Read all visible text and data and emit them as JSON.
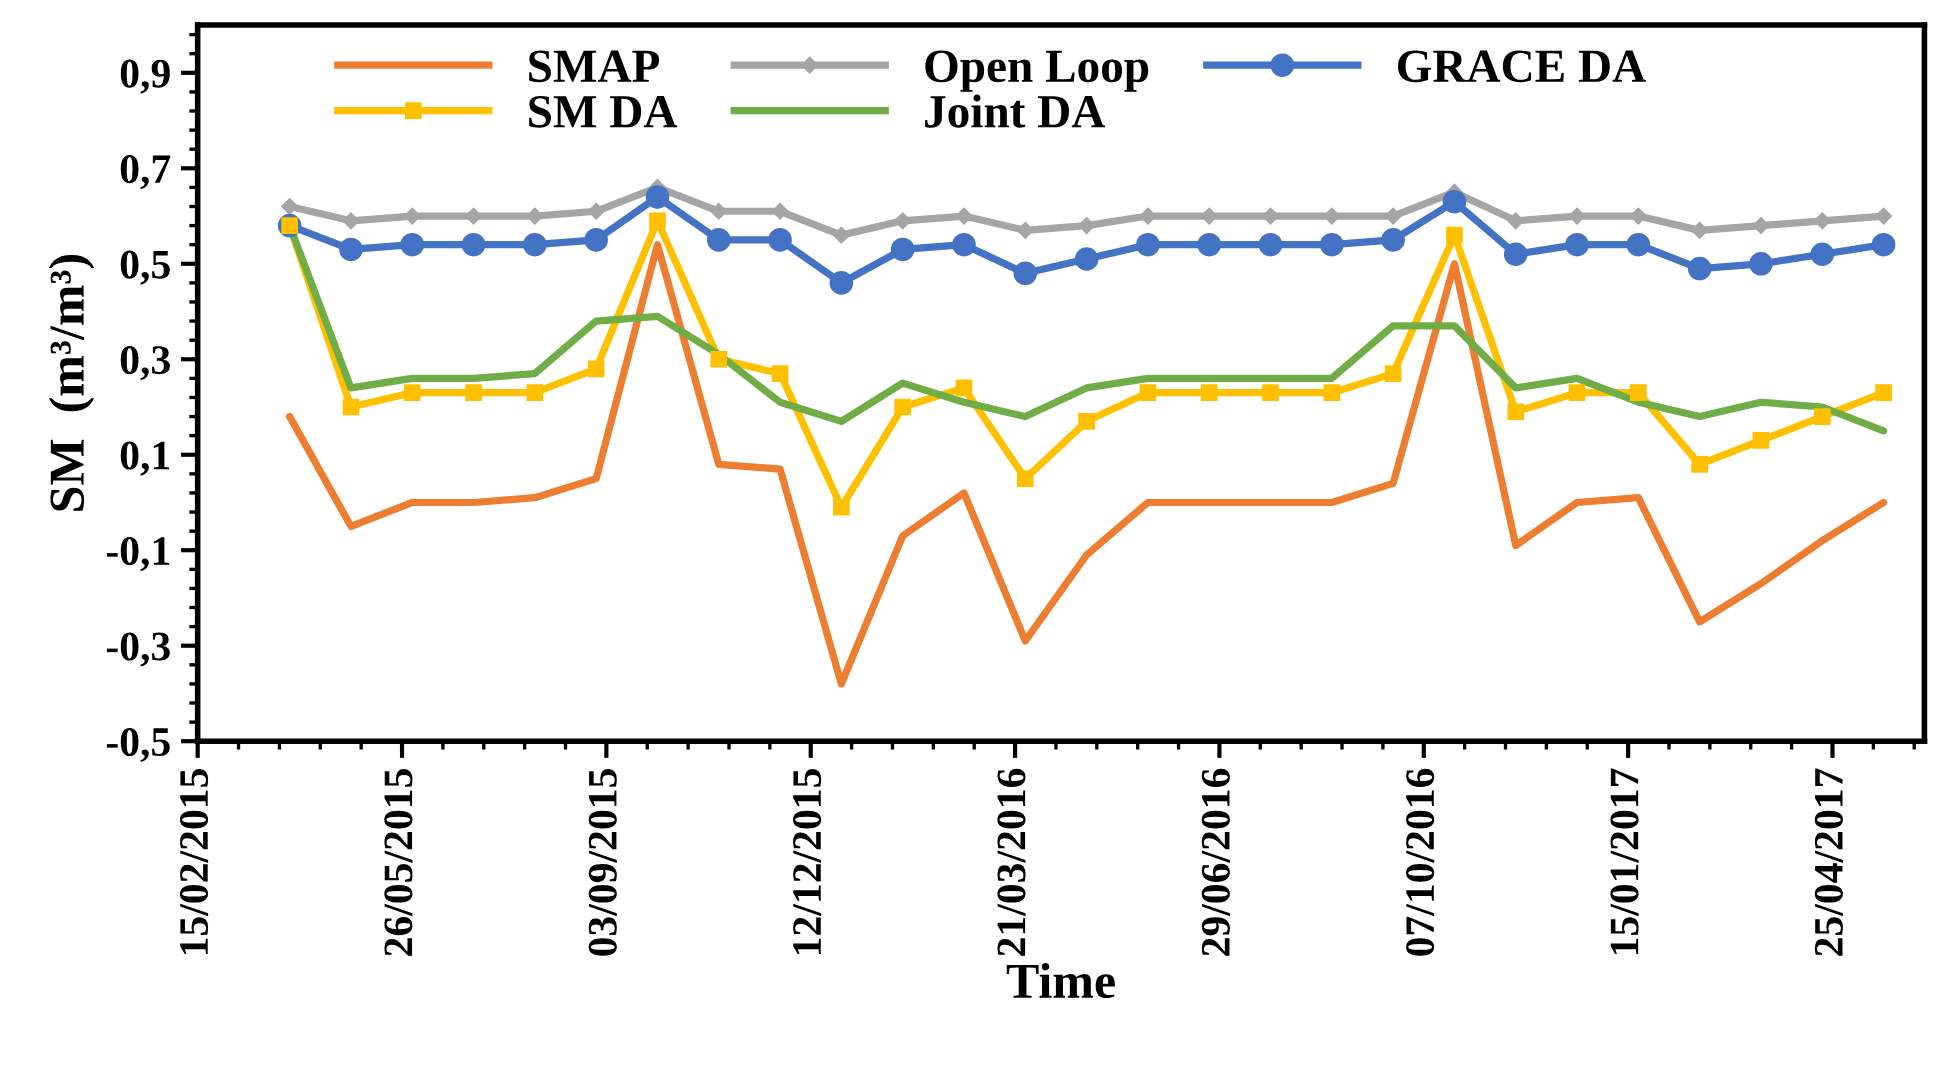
{
  "chart_data": {
    "type": "line",
    "xlabel": "Time",
    "ylabel": "SM  (m³/m³)",
    "x": [
      "2015-04-01",
      "2015-05-01",
      "2015-05-31",
      "2015-06-30",
      "2015-07-30",
      "2015-08-29",
      "2015-09-28",
      "2015-10-28",
      "2015-11-27",
      "2015-12-27",
      "2016-01-26",
      "2016-02-25",
      "2016-03-26",
      "2016-04-25",
      "2016-05-25",
      "2016-06-24",
      "2016-07-24",
      "2016-08-23",
      "2016-09-22",
      "2016-10-22",
      "2016-11-21",
      "2016-12-21",
      "2017-01-20",
      "2017-02-19",
      "2017-03-21",
      "2017-04-20",
      "2017-05-20"
    ],
    "series": [
      {
        "name": "SMAP",
        "color": "#ed7d31",
        "marker": "none",
        "values": [
          0.18,
          -0.05,
          0.0,
          0.0,
          0.01,
          0.05,
          0.54,
          0.08,
          0.07,
          -0.38,
          -0.07,
          0.02,
          -0.29,
          -0.11,
          0.0,
          0.0,
          0.0,
          0.0,
          0.04,
          0.5,
          -0.09,
          0.0,
          0.01,
          -0.25,
          -0.17,
          -0.08,
          0.0
        ]
      },
      {
        "name": "Open Loop",
        "color": "#a5a5a5",
        "marker": "diamond",
        "values": [
          0.62,
          0.59,
          0.6,
          0.6,
          0.6,
          0.61,
          0.66,
          0.61,
          0.61,
          0.56,
          0.59,
          0.6,
          0.57,
          0.58,
          0.6,
          0.6,
          0.6,
          0.6,
          0.6,
          0.65,
          0.59,
          0.6,
          0.6,
          0.57,
          0.58,
          0.59,
          0.6
        ]
      },
      {
        "name": "GRACE DA",
        "color": "#4472c4",
        "marker": "circle",
        "values": [
          0.58,
          0.53,
          0.54,
          0.54,
          0.54,
          0.55,
          0.64,
          0.55,
          0.55,
          0.46,
          0.53,
          0.54,
          0.48,
          0.51,
          0.54,
          0.54,
          0.54,
          0.54,
          0.55,
          0.63,
          0.52,
          0.54,
          0.54,
          0.49,
          0.5,
          0.52,
          0.54
        ]
      },
      {
        "name": "SM DA",
        "color": "#ffc000",
        "marker": "square",
        "values": [
          0.58,
          0.2,
          0.23,
          0.23,
          0.23,
          0.28,
          0.59,
          0.3,
          0.27,
          -0.01,
          0.2,
          0.24,
          0.05,
          0.17,
          0.23,
          0.23,
          0.23,
          0.23,
          0.27,
          0.56,
          0.19,
          0.23,
          0.23,
          0.08,
          0.13,
          0.18,
          0.23
        ]
      },
      {
        "name": "Joint DA",
        "color": "#70ad47",
        "marker": "none",
        "values": [
          0.58,
          0.24,
          0.26,
          0.26,
          0.27,
          0.38,
          0.39,
          0.31,
          0.21,
          0.17,
          0.25,
          0.21,
          0.18,
          0.24,
          0.26,
          0.26,
          0.26,
          0.26,
          0.37,
          0.37,
          0.24,
          0.26,
          0.21,
          0.18,
          0.21,
          0.2,
          0.15
        ]
      }
    ],
    "xlim": [
      "2015-02-15",
      "2017-06-09"
    ],
    "xticks": [
      {
        "value": "2015-02-15",
        "label": "15/02/2015"
      },
      {
        "value": "2015-05-26",
        "label": "26/05/2015"
      },
      {
        "value": "2015-09-03",
        "label": "03/09/2015"
      },
      {
        "value": "2015-12-12",
        "label": "12/12/2015"
      },
      {
        "value": "2016-03-21",
        "label": "21/03/2016"
      },
      {
        "value": "2016-06-29",
        "label": "29/06/2016"
      },
      {
        "value": "2016-10-07",
        "label": "07/10/2016"
      },
      {
        "value": "2017-01-15",
        "label": "15/01/2017"
      },
      {
        "value": "2017-04-25",
        "label": "25/04/2017"
      }
    ],
    "ylim": [
      -0.5,
      1.0
    ],
    "yticks": [
      {
        "value": -0.5,
        "label": "-0,5"
      },
      {
        "value": -0.3,
        "label": "-0,3"
      },
      {
        "value": -0.1,
        "label": "-0,1"
      },
      {
        "value": 0.1,
        "label": "0,1"
      },
      {
        "value": 0.3,
        "label": "0,3"
      },
      {
        "value": 0.5,
        "label": "0,5"
      },
      {
        "value": 0.7,
        "label": "0,7"
      },
      {
        "value": 0.9,
        "label": "0,9"
      }
    ],
    "grid": false,
    "legend": "top",
    "line_style": "solid"
  }
}
